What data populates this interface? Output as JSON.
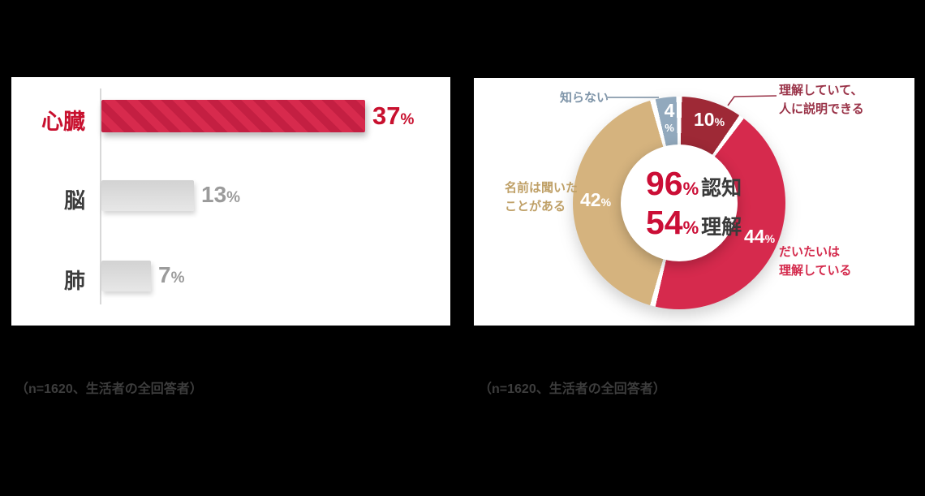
{
  "background_color": "#000000",
  "chart_data": [
    {
      "type": "bar",
      "orientation": "horizontal",
      "categories": [
        "心臓",
        "脳",
        "肺"
      ],
      "values": [
        37,
        13,
        7
      ],
      "unit": "%",
      "xlim": [
        0,
        40
      ],
      "highlight_index": 0,
      "colors": {
        "highlight_bar": "#d72a4d",
        "highlight_stripe": "#c41f42",
        "highlight_text": "#c8102e",
        "other_bar_light": "#e7e7e7",
        "other_bar_dark": "#d2d2d2",
        "other_text": "#9b9b9b",
        "category_text": "#3b3b3b",
        "axis": "#d8d8d8"
      },
      "caption": "（n=1620、生活者の全回答者）"
    },
    {
      "type": "pie",
      "subtype": "donut",
      "start_angle_deg": 0,
      "direction": "clockwise",
      "unit": "%",
      "segments": [
        {
          "label": "理解していて、人に説明できる",
          "label_lines": [
            "理解していて、",
            "人に説明できる"
          ],
          "value": 10,
          "color": "#9e2936",
          "label_color": "#993247"
        },
        {
          "label": "だいたいは理解している",
          "label_lines": [
            "だいたいは",
            "理解している"
          ],
          "value": 44,
          "color": "#d62a4d",
          "label_color": "#d42a4c"
        },
        {
          "label": "名前は聞いたことがある",
          "label_lines": [
            "名前は聞いた",
            "ことがある"
          ],
          "value": 42,
          "color": "#d5b37e",
          "label_color": "#bfa067"
        },
        {
          "label": "知らない",
          "label_lines": [
            "知らない"
          ],
          "value": 4,
          "color": "#92a9bd",
          "label_color": "#7f95a9"
        }
      ],
      "center_stats": [
        {
          "value": "96",
          "unit": "%",
          "label": "認知"
        },
        {
          "value": "54",
          "unit": "%",
          "label": "理解"
        }
      ],
      "colors": {
        "segment_value_text": "#ffffff",
        "center_number": "#cb0e36",
        "center_label": "#3a3a3a",
        "gap": "#ffffff"
      },
      "caption": "（n=1620、生活者の全回答者）"
    }
  ]
}
